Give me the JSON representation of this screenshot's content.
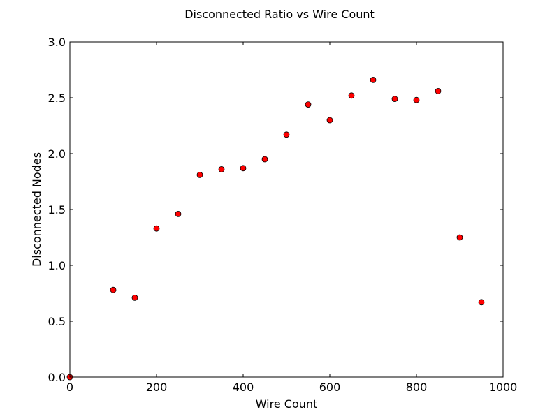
{
  "chart_data": {
    "type": "scatter",
    "title": "Disconnected Ratio vs Wire Count",
    "xlabel": "Wire Count",
    "ylabel": "Disconnected Nodes",
    "xlim": [
      0,
      1000
    ],
    "ylim": [
      0.0,
      3.0
    ],
    "xticks": [
      0,
      200,
      400,
      600,
      800,
      1000
    ],
    "xtick_labels": [
      "0",
      "200",
      "400",
      "600",
      "800",
      "1000"
    ],
    "yticks": [
      0.0,
      0.5,
      1.0,
      1.5,
      2.0,
      2.5,
      3.0
    ],
    "ytick_labels": [
      "0.0",
      "0.5",
      "1.0",
      "1.5",
      "2.0",
      "2.5",
      "3.0"
    ],
    "grid": false,
    "marker_color": "#ff0000",
    "marker_edge_color": "#000000",
    "x": [
      0,
      100,
      150,
      200,
      250,
      300,
      350,
      400,
      450,
      500,
      550,
      600,
      650,
      700,
      750,
      800,
      850,
      900,
      950
    ],
    "y": [
      0.0,
      0.78,
      0.71,
      1.33,
      1.46,
      1.81,
      1.86,
      1.87,
      1.95,
      2.17,
      2.44,
      2.3,
      2.52,
      2.66,
      2.49,
      2.48,
      2.56,
      1.25,
      0.67
    ]
  }
}
